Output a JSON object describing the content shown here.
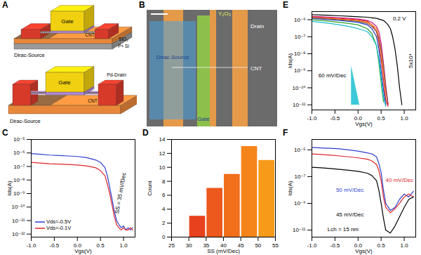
{
  "chart_data": [
    {
      "type": "line",
      "title": "C",
      "x_label": "Vgs(V)",
      "y_label": "Ids(A)",
      "log": "y",
      "legend": "lower left",
      "x": [
        -1,
        -0.8,
        -0.6,
        -0.4,
        -0.2,
        0,
        0.2,
        0.4,
        0.5,
        0.6,
        0.65,
        0.7,
        0.75,
        0.8,
        0.85,
        0.9,
        0.95,
        1.0,
        1.05,
        1.1,
        1.15,
        1.2
      ],
      "series": [
        {
          "name": "Vds=-0.5V",
          "color": "#2b3fd1",
          "values": [
            9e-07,
            8e-07,
            7e-07,
            6.5e-07,
            6e-07,
            5.5e-07,
            4.5e-07,
            3e-07,
            2e-07,
            8e-08,
            2e-08,
            3e-09,
            4e-10,
            5e-11,
            1e-11,
            5e-12,
            3e-12,
            4e-12,
            2e-12,
            3e-12,
            2e-12,
            3e-12
          ]
        },
        {
          "name": "Vds=-0.1V",
          "color": "#e0252a",
          "values": [
            2e-07,
            1.8e-07,
            1.6e-07,
            1.5e-07,
            1.4e-07,
            1.3e-07,
            1.1e-07,
            8e-08,
            5e-08,
            2e-08,
            5e-09,
            1e-09,
            1.5e-10,
            2e-11,
            5e-12,
            3e-12,
            2e-12,
            3e-12,
            2e-12,
            2e-12,
            3e-12,
            2e-12
          ]
        }
      ],
      "xlim": [
        -1,
        1.25
      ],
      "xticks": [
        {
          "value": -1,
          "label": "-1.0"
        },
        -0.5,
        {
          "value": 0,
          "label": "0.0"
        },
        0.5,
        {
          "value": 1,
          "label": "1.0"
        }
      ],
      "ylim": [
        6e-13,
        1e-05
      ],
      "yticks": [
        {
          "value": 1e-12,
          "label": "10⁻¹²"
        },
        {
          "value": 1e-11,
          "label": "10⁻¹¹"
        },
        {
          "value": 1e-10,
          "label": "10⁻¹⁰"
        },
        {
          "value": 1e-09,
          "label": "10⁻⁹"
        },
        {
          "value": 1e-08,
          "label": "10⁻⁸"
        },
        {
          "value": 1e-07,
          "label": "10⁻⁷"
        },
        {
          "value": 1e-06,
          "label": "10⁻⁶"
        },
        {
          "value": 1e-05,
          "label": "10⁻⁵"
        }
      ],
      "annotations": [
        {
          "text": "SS = 35 mV/Dec",
          "color": "#000000"
        }
      ]
    },
    {
      "type": "histogram",
      "title": "D",
      "x_label": "SS (mV/Dec)",
      "y_label": "Count",
      "bins": [
        30,
        35,
        40,
        45,
        50,
        55
      ],
      "values": [
        3,
        7,
        9,
        13,
        11
      ],
      "colors": [
        "#e8411d",
        "#ed581c",
        "#f16e1b",
        "#f5841a",
        "#f89a19"
      ],
      "xlim": [
        25,
        55
      ],
      "xticks": [
        25,
        30,
        35,
        40,
        45,
        50,
        55
      ],
      "ylim": [
        0,
        14
      ],
      "yticks": [
        0,
        2,
        4,
        6,
        8,
        10,
        12,
        14
      ]
    },
    {
      "type": "line",
      "title": "E",
      "x_label": "Vgs(V)",
      "y_label": "Ids(A)",
      "log": "y",
      "x": [
        -1,
        -0.8,
        -0.6,
        -0.4,
        -0.2,
        0,
        0.2,
        0.3,
        0.4,
        0.45,
        0.5,
        0.55,
        0.6,
        0.65,
        0.7,
        0.75,
        0.8,
        0.85,
        0.9,
        0.95,
        1.0,
        1.1,
        1.2
      ],
      "series": [
        {
          "color": "#e41a1c",
          "values": [
            1.5e-06,
            1.4e-06,
            1.3e-06,
            1.2e-06,
            1.1e-06,
            1e-06,
            8e-07,
            5e-07,
            2e-07,
            5e-08,
            5e-09,
            3e-10,
            2e-11,
            8e-12,
            null,
            null,
            null,
            null,
            null,
            null,
            null,
            null,
            null
          ]
        },
        {
          "color": "#1f3fbf",
          "values": [
            1.2e-06,
            1.1e-06,
            1e-06,
            9e-07,
            8e-07,
            7e-07,
            5e-07,
            3e-07,
            1e-07,
            2e-08,
            1e-09,
            8e-11,
            1e-11,
            null,
            null,
            null,
            null,
            null,
            null,
            null,
            null,
            null,
            null
          ]
        },
        {
          "color": "#2ca02c",
          "values": [
            1e-06,
            9e-07,
            8e-07,
            7e-07,
            6e-07,
            5e-07,
            3e-07,
            1.5e-07,
            3e-08,
            3e-09,
            2e-10,
            1.5e-11,
            null,
            null,
            null,
            null,
            null,
            null,
            null,
            null,
            null,
            null,
            null
          ]
        },
        {
          "color": "#ff7f0e",
          "values": [
            1.4e-06,
            1.3e-06,
            1.2e-06,
            1.1e-06,
            1e-06,
            9e-07,
            7e-07,
            5e-07,
            3e-07,
            1e-07,
            1.5e-08,
            1e-09,
            6e-11,
            1e-11,
            null,
            null,
            null,
            null,
            null,
            null,
            null,
            null,
            null
          ]
        },
        {
          "color": "#17becf",
          "values": [
            8e-07,
            7e-07,
            6e-07,
            5e-07,
            4e-07,
            3e-07,
            2e-07,
            1e-07,
            3e-08,
            5e-09,
            4e-10,
            3e-11,
            8e-12,
            null,
            null,
            null,
            null,
            null,
            null,
            null,
            null,
            null,
            null
          ]
        },
        {
          "color": "#c71585",
          "values": [
            1.6e-06,
            1.5e-06,
            1.4e-06,
            1.3e-06,
            1.2e-06,
            1.1e-06,
            9e-07,
            7e-07,
            4e-07,
            2e-07,
            4e-08,
            3e-09,
            1.5e-10,
            1e-11,
            null,
            null,
            null,
            null,
            null,
            null,
            null,
            null,
            null
          ]
        },
        {
          "color": "#8c564b",
          "values": [
            1.3e-06,
            1.2e-06,
            1.1e-06,
            1e-06,
            9e-07,
            8e-07,
            6e-07,
            4e-07,
            2e-07,
            8e-08,
            2e-08,
            2e-09,
            1e-10,
            1.2e-11,
            null,
            null,
            null,
            null,
            null,
            null,
            null,
            null,
            null
          ]
        },
        {
          "color": "#000000",
          "values": [
            2e-06,
            1.9e-06,
            1.8e-06,
            1.7e-06,
            1.6e-06,
            1.5e-06,
            1.4e-06,
            1.3e-06,
            1.2e-06,
            1.1e-06,
            1e-06,
            9e-07,
            7e-07,
            5e-07,
            3e-07,
            1e-07,
            2e-08,
            2e-09,
            1e-10,
            1e-11,
            null,
            null,
            null
          ]
        }
      ],
      "xlim": [
        -1,
        1.25
      ],
      "xticks": [
        {
          "value": -1,
          "label": "-1.0"
        },
        -0.5,
        {
          "value": 0,
          "label": "0.0"
        },
        0.5,
        {
          "value": 1,
          "label": "1.0"
        }
      ],
      "ylim": [
        5e-12,
        3e-06
      ],
      "yticks": [
        {
          "value": 1e-11,
          "label": "10⁻¹¹"
        },
        {
          "value": 1e-10,
          "label": "10⁻¹⁰"
        },
        {
          "value": 1e-09,
          "label": "10⁻⁹"
        },
        {
          "value": 1e-08,
          "label": "10⁻⁸"
        },
        {
          "value": 1e-07,
          "label": "10⁻⁷"
        },
        {
          "value": 1e-06,
          "label": "10⁻⁶"
        }
      ],
      "annotations": [
        {
          "text": "0.2 V",
          "color": "#000000"
        },
        {
          "text": "5x10⁴",
          "color": "#000000"
        },
        {
          "text": "60 mV/Dec",
          "color": "#000000"
        }
      ]
    },
    {
      "type": "line",
      "title": "F",
      "x_label": "Vgs(V)",
      "y_label": "Ids(A)",
      "log": "y",
      "x": [
        -1,
        -0.8,
        -0.6,
        -0.4,
        -0.2,
        0,
        0.2,
        0.3,
        0.4,
        0.45,
        0.5,
        0.55,
        0.6,
        0.7,
        0.8,
        0.9,
        1.0,
        1.1,
        1.2
      ],
      "series": [
        {
          "color": "#2b3fd1",
          "values": [
            1.5e-05,
            1.4e-05,
            1.3e-05,
            1.2e-05,
            1e-05,
            8e-06,
            6e-06,
            5e-06,
            3e-06,
            1e-06,
            2e-07,
            1e-08,
            1e-09,
            3e-10,
            5e-10,
            2e-09,
            5e-09,
            3e-09,
            8e-09
          ]
        },
        {
          "color": "#e0252a",
          "values": [
            5e-06,
            4.5e-06,
            4e-06,
            3.5e-06,
            3e-06,
            2.5e-06,
            2e-06,
            1.5e-06,
            8e-07,
            3e-07,
            5e-08,
            3e-09,
            5e-10,
            2e-10,
            4e-10,
            1e-09,
            3e-09,
            5e-09,
            3e-09
          ]
        },
        {
          "color": "#000000",
          "values": [
            5e-07,
            4.5e-07,
            4e-07,
            3.5e-07,
            3e-07,
            2.5e-07,
            1.8e-07,
            1.2e-07,
            5e-08,
            1e-08,
            1e-09,
            8e-11,
            1e-11,
            6e-12,
            2e-11,
            1e-10,
            5e-10,
            2e-09,
            3e-09
          ]
        }
      ],
      "xlim": [
        -1,
        1.25
      ],
      "xticks": [
        {
          "value": -1,
          "label": "-1.0"
        },
        -0.5,
        {
          "value": 0,
          "label": "0.0"
        },
        0.5,
        {
          "value": 1,
          "label": "1.0"
        }
      ],
      "ylim": [
        3e-12,
        6e-05
      ],
      "yticks": [
        {
          "value": 1e-11,
          "label": "10⁻¹¹"
        },
        {
          "value": 1e-09,
          "label": "10⁻⁹"
        },
        {
          "value": 1e-07,
          "label": "10⁻⁷"
        },
        {
          "value": 1e-05,
          "label": "10⁻⁵"
        }
      ],
      "annotations": [
        {
          "text": "50 mV/Dec",
          "color": "#2b3fd1"
        },
        {
          "text": "40 mV/Dec",
          "color": "#e0252a"
        },
        {
          "text": "45 mV/Dec",
          "color": "#000000"
        },
        {
          "text": "Lch = 15 nm",
          "color": "#000000"
        }
      ]
    }
  ],
  "diagrams": [
    {
      "label": "A",
      "devices": [
        {
          "gate": "Gate",
          "cnt": "CNT",
          "oxide": "SiO₂",
          "substrate": "P+ Si",
          "source": "Dirac-Source"
        },
        {
          "gate": "Gate",
          "drain": "Pd-Drain",
          "cnt": "CNT",
          "source": "Dirac-Source"
        }
      ]
    },
    {
      "label": "B",
      "source": "Dirac-Source",
      "oxide": "Y₂O₃",
      "drain": "Drain",
      "cnt": "CNT",
      "gate": "Gate"
    }
  ]
}
